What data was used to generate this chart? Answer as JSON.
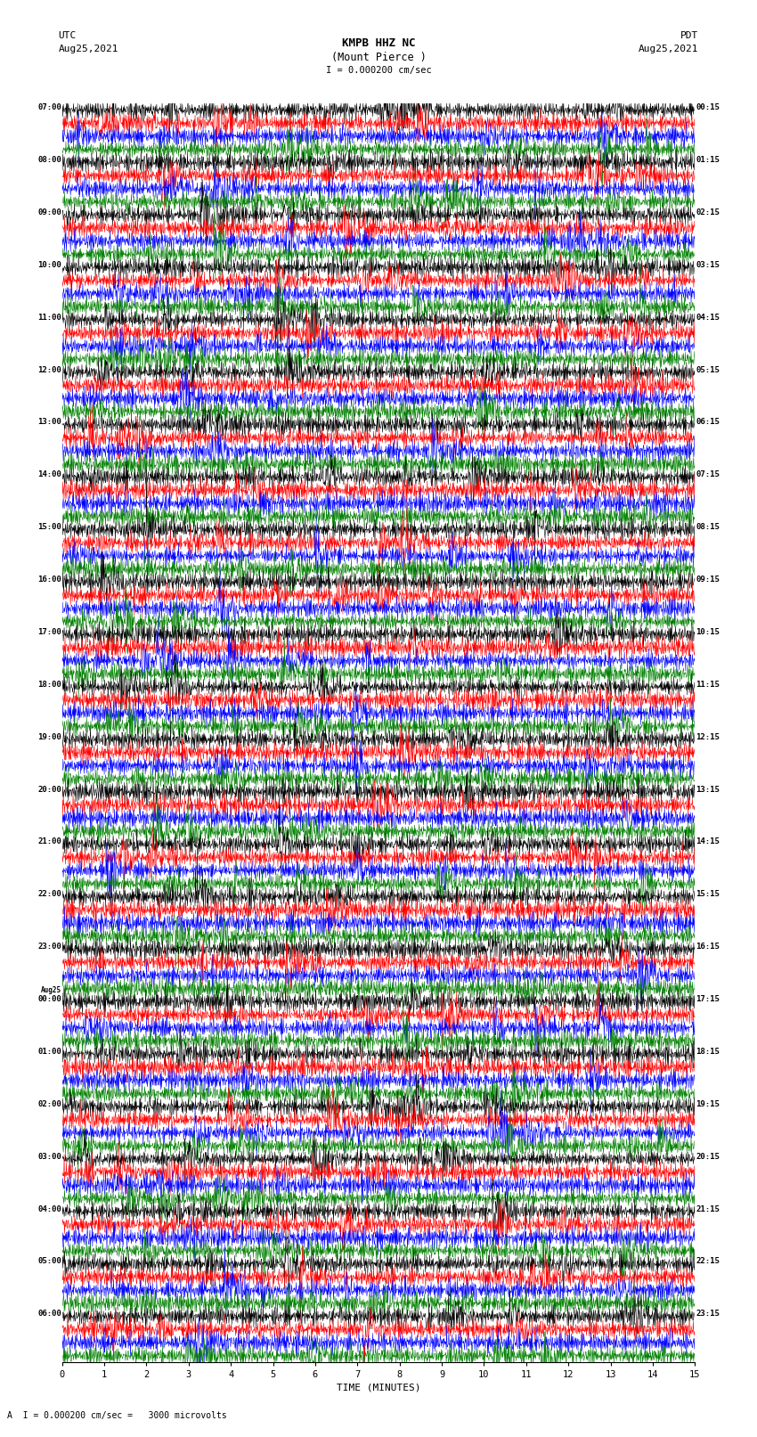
{
  "title_line1": "KMPB HHZ NC",
  "title_line2": "(Mount Pierce )",
  "scale_text": "I = 0.000200 cm/sec",
  "footer_text": "A  I = 0.000200 cm/sec =   3000 microvolts",
  "utc_label": "UTC",
  "utc_date": "Aug25,2021",
  "pdt_label": "PDT",
  "pdt_date": "Aug25,2021",
  "xlabel": "TIME (MINUTES)",
  "xlim": [
    0,
    15
  ],
  "xticks": [
    0,
    1,
    2,
    3,
    4,
    5,
    6,
    7,
    8,
    9,
    10,
    11,
    12,
    13,
    14,
    15
  ],
  "trace_colors": [
    "black",
    "red",
    "blue",
    "green"
  ],
  "bg_color": "white",
  "fig_width": 8.5,
  "fig_height": 16.13,
  "dpi": 100,
  "n_groups": 24,
  "traces_per_group": 4,
  "left_times": [
    "07:00",
    "08:00",
    "09:00",
    "10:00",
    "11:00",
    "12:00",
    "13:00",
    "14:00",
    "15:00",
    "16:00",
    "17:00",
    "18:00",
    "19:00",
    "20:00",
    "21:00",
    "22:00",
    "23:00",
    "00:00",
    "01:00",
    "02:00",
    "03:00",
    "04:00",
    "05:00",
    "06:00"
  ],
  "aug25_marker_idx": 17,
  "right_times": [
    "00:15",
    "01:15",
    "02:15",
    "03:15",
    "04:15",
    "05:15",
    "06:15",
    "07:15",
    "08:15",
    "09:15",
    "10:15",
    "11:15",
    "12:15",
    "13:15",
    "14:15",
    "15:15",
    "16:15",
    "17:15",
    "18:15",
    "19:15",
    "20:15",
    "21:15",
    "22:15",
    "23:15"
  ],
  "seed": 42
}
